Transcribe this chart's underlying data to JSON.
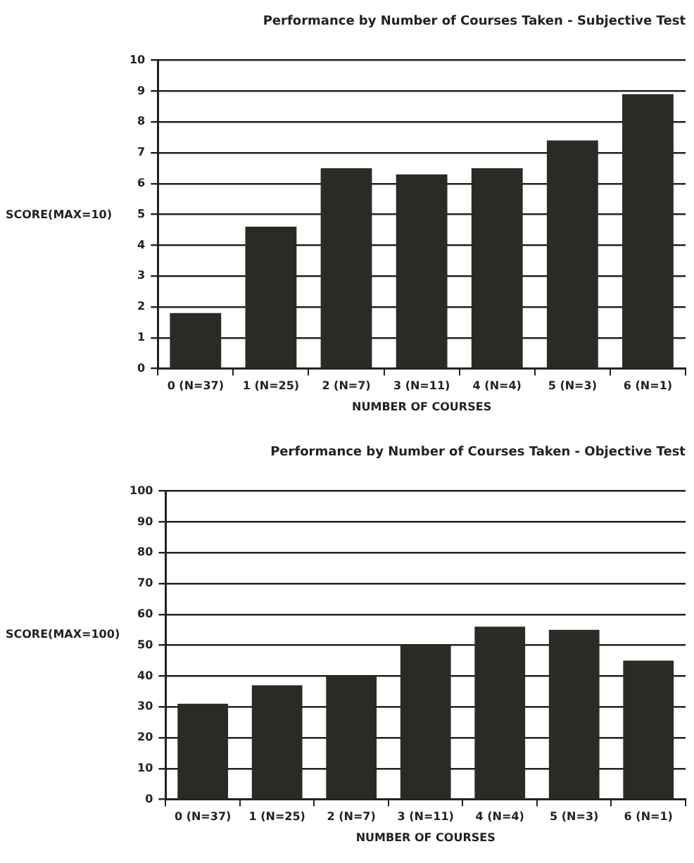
{
  "chart_data": [
    {
      "type": "bar",
      "title": "Performance by Number of Courses Taken - Subjective Test",
      "xlabel": "NUMBER OF COURSES",
      "ylabel": "SCORE(MAX=10)",
      "categories": [
        "0 (N=37)",
        "1 (N=25)",
        "2 (N=7)",
        "3 (N=11)",
        "4 (N=4)",
        "5 (N=3)",
        "6 (N=1)"
      ],
      "values": [
        1.8,
        4.6,
        6.5,
        6.3,
        6.5,
        7.4,
        8.9
      ],
      "color": "#2b2a24",
      "ylim": [
        0,
        10
      ],
      "yticks": [
        0,
        1,
        2,
        3,
        4,
        5,
        6,
        7,
        8,
        9,
        10
      ],
      "grid": "y"
    },
    {
      "type": "bar",
      "title": "Performance by Number of Courses Taken - Objective Test",
      "xlabel": "NUMBER OF COURSES",
      "ylabel": "SCORE(MAX=100)",
      "categories": [
        "0 (N=37)",
        "1 (N=25)",
        "2 (N=7)",
        "3 (N=11)",
        "4 (N=4)",
        "5 (N=3)",
        "6 (N=1)"
      ],
      "values": [
        31,
        37,
        40,
        50,
        56,
        55,
        45
      ],
      "color": "#2b2a24",
      "ylim": [
        0,
        100
      ],
      "yticks": [
        0,
        10,
        20,
        30,
        40,
        50,
        60,
        70,
        80,
        90,
        100
      ],
      "grid": "y"
    }
  ]
}
